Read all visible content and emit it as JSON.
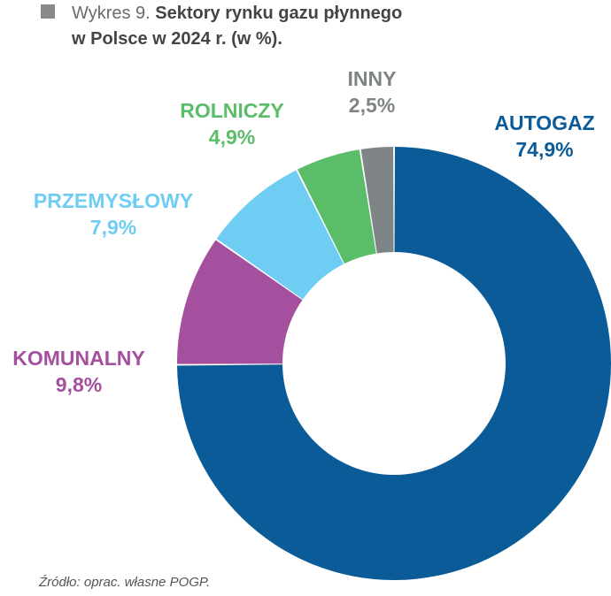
{
  "title": {
    "prefix": "Wykres 9. ",
    "bold_line1": "Sektory rynku gazu płynnego",
    "bold_line2": "w Polsce w 2024 r. (w %)."
  },
  "chart_data": {
    "type": "pie",
    "variant": "donut",
    "title": "Wykres 9. Sektory rynku gazu płynnego w Polsce w 2024 r. (w %).",
    "slices": [
      {
        "label": "AUTOGAZ",
        "value": 74.9,
        "display": "74,9%",
        "color": "#0a5b97"
      },
      {
        "label": "KOMUNALNY",
        "value": 9.8,
        "display": "9,8%",
        "color": "#a4509e"
      },
      {
        "label": "PRZEMYSŁOWY",
        "value": 7.9,
        "display": "7,9%",
        "color": "#6fcdf3"
      },
      {
        "label": "ROLNICZY",
        "value": 4.9,
        "display": "4,9%",
        "color": "#5bbd6a"
      },
      {
        "label": "INNY",
        "value": 2.5,
        "display": "2,5%",
        "color": "#7f8486"
      }
    ],
    "start_angle": "12 o'clock",
    "direction": "clockwise",
    "legend": "none (labels placed next to slices)"
  },
  "source": "Źródło: oprac. własne POGP."
}
